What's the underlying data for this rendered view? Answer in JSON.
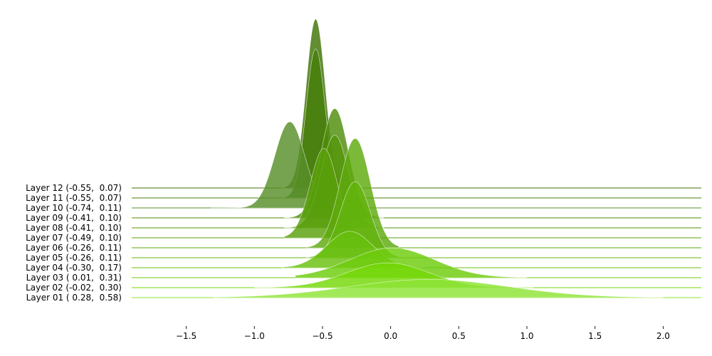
{
  "chart_data": {
    "type": "area",
    "subtype": "ridgeline",
    "title": "",
    "xlabel": "",
    "ylabel": "",
    "xlim": [
      -1.9,
      2.28
    ],
    "xticks": [
      -1.5,
      -1.0,
      -0.5,
      0.0,
      0.5,
      1.0,
      1.5,
      2.0
    ],
    "xtick_labels": [
      "−1.5",
      "−1.0",
      "−0.5",
      "0.0",
      "0.5",
      "1.0",
      "1.5",
      "2.0"
    ],
    "grid": false,
    "layers": [
      {
        "label": "Layer 12 (-0.55,  0.07)",
        "mean": -0.55,
        "std": 0.07,
        "color": "#3f7405",
        "peak": 5.1,
        "min": -0.8,
        "max": -0.2
      },
      {
        "label": "Layer 11 (-0.55,  0.07)",
        "mean": -0.55,
        "std": 0.07,
        "color": "#467f08",
        "peak": 4.5,
        "min": -0.8,
        "max": -0.2
      },
      {
        "label": "Layer 10 (-0.74,  0.11)",
        "mean": -0.74,
        "std": 0.11,
        "color": "#588f2a",
        "peak": 2.6,
        "min": -1.32,
        "max": -0.35
      },
      {
        "label": "Layer 09 (-0.41,  0.10)",
        "mean": -0.41,
        "std": 0.1,
        "color": "#4f8e0a",
        "peak": 3.3,
        "min": -0.78,
        "max": -0.05
      },
      {
        "label": "Layer 08 (-0.41,  0.10)",
        "mean": -0.41,
        "std": 0.1,
        "color": "#54960b",
        "peak": 2.8,
        "min": -0.78,
        "max": -0.05
      },
      {
        "label": "Layer 07 (-0.49,  0.10)",
        "mean": -0.49,
        "std": 0.1,
        "color": "#59a00b",
        "peak": 2.7,
        "min": -0.78,
        "max": -0.1
      },
      {
        "label": "Layer 06 (-0.26,  0.11)",
        "mean": -0.26,
        "std": 0.11,
        "color": "#5eaa0c",
        "peak": 3.3,
        "min": -0.62,
        "max": 0.06
      },
      {
        "label": "Layer 05 (-0.26,  0.11)",
        "mean": -0.26,
        "std": 0.11,
        "color": "#63b40d",
        "peak": 2.3,
        "min": -0.62,
        "max": 0.06
      },
      {
        "label": "Layer 04 (-0.30,  0.17)",
        "mean": -0.3,
        "std": 0.17,
        "color": "#69c00e",
        "peak": 1.1,
        "min": -0.8,
        "max": 0.25
      },
      {
        "label": "Layer 03 ( 0.01,  0.31)",
        "mean": 0.01,
        "std": 0.31,
        "color": "#6dcc0b",
        "peak": 0.9,
        "min": -0.7,
        "max": 1.0
      },
      {
        "label": "Layer 02 (-0.02,  0.30)",
        "mean": -0.02,
        "std": 0.3,
        "color": "#74d806",
        "peak": 0.75,
        "min": -1.0,
        "max": 1.05
      },
      {
        "label": "Layer 01 ( 0.28,  0.58)",
        "mean": 0.28,
        "std": 0.58,
        "color": "#8ee436",
        "peak": 0.55,
        "min": -1.3,
        "max": 2.0
      }
    ]
  }
}
